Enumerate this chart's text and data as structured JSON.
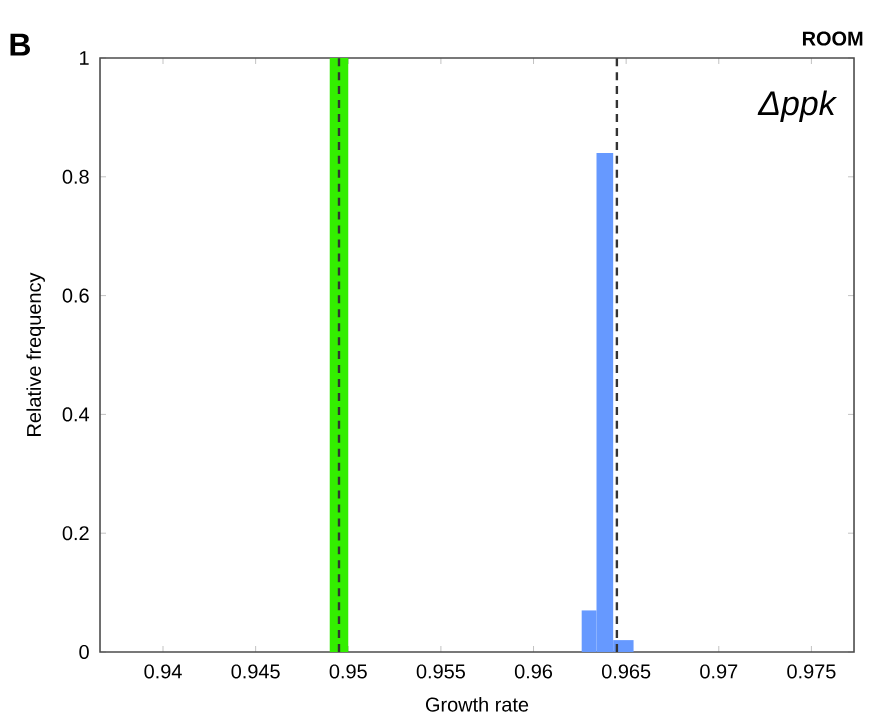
{
  "chart_data": {
    "type": "histogram",
    "xlabel": "Growth rate",
    "ylabel": "Relative frequency",
    "annotations": [
      "B",
      "ROOM",
      "Δppk"
    ],
    "bins": [
      0.949,
      0.95,
      0.9626,
      0.9634,
      0.9643,
      0.9654
    ],
    "values": [
      1,
      0,
      0.07,
      0.84,
      0.02
    ],
    "colors": [
      "#33ee00",
      "#ffffff",
      "#6699ff",
      "#6699ff",
      "#6699ff"
    ],
    "ref_lines": [
      {
        "axis": "x",
        "value": 0.9495,
        "color": "#333333",
        "line_style": "dashed"
      },
      {
        "axis": "x",
        "value": 0.9645,
        "color": "#333333",
        "line_style": "dashed"
      }
    ],
    "xlim": [
      0.9366,
      0.9773
    ],
    "ylim": [
      0,
      1
    ],
    "xticks": [
      0.94,
      0.945,
      0.95,
      0.955,
      0.96,
      0.965,
      0.97,
      0.975
    ],
    "yticks": [
      0,
      0.2,
      0.4,
      0.6,
      0.8,
      1
    ],
    "grid": false
  }
}
